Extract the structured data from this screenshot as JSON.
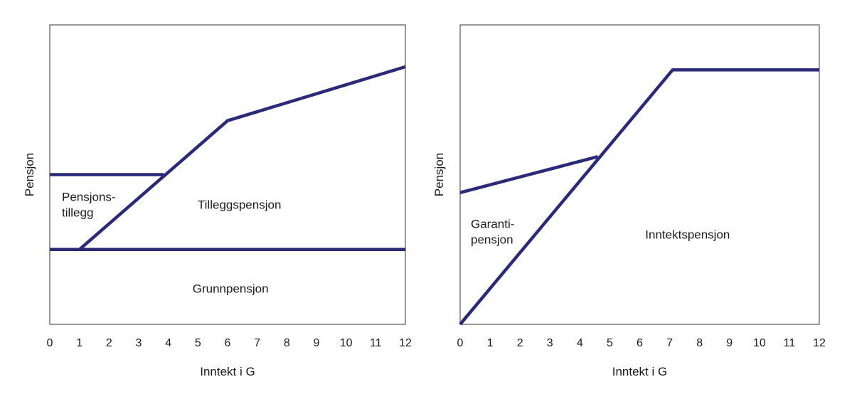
{
  "accent_color": "#2b2a78",
  "chart_data": [
    {
      "type": "line",
      "xlabel": "Inntekt i G",
      "ylabel": "Pensjon",
      "xlim": [
        0,
        12
      ],
      "ylim": [
        0,
        100
      ],
      "x_ticks": [
        "0",
        "1",
        "2",
        "3",
        "4",
        "5",
        "6",
        "7",
        "8",
        "9",
        "10",
        "11",
        "12"
      ],
      "grid": false,
      "series": [
        {
          "id": "grunnpensjon-line",
          "points": [
            [
              0,
              25
            ],
            [
              12,
              25
            ]
          ]
        },
        {
          "id": "pensjonstillegg-line",
          "points": [
            [
              0,
              50
            ],
            [
              3.85,
              50
            ]
          ]
        },
        {
          "id": "tilleggspensjon-line",
          "points": [
            [
              1,
              25
            ],
            [
              6,
              68
            ],
            [
              12,
              86
            ]
          ]
        }
      ],
      "annotations": [
        {
          "id": "pensjonstillegg",
          "lines": [
            "Pensjons-",
            "tillegg"
          ],
          "x": 1.3,
          "y": 40
        },
        {
          "id": "tilleggspensjon",
          "lines": [
            "Tilleggspensjon"
          ],
          "x": 6.4,
          "y": 40
        },
        {
          "id": "grunnpensjon",
          "lines": [
            "Grunnpensjon"
          ],
          "x": 6.1,
          "y": 12
        }
      ]
    },
    {
      "type": "line",
      "xlabel": "Inntekt i G",
      "ylabel": "Pensjon",
      "xlim": [
        0,
        12
      ],
      "ylim": [
        0,
        100
      ],
      "x_ticks": [
        "0",
        "1",
        "2",
        "3",
        "4",
        "5",
        "6",
        "7",
        "8",
        "9",
        "10",
        "11",
        "12"
      ],
      "grid": false,
      "series": [
        {
          "id": "garantipensjon-line",
          "points": [
            [
              0,
              44
            ],
            [
              4.6,
              56
            ]
          ]
        },
        {
          "id": "inntektspensjon-line",
          "points": [
            [
              0,
              0
            ],
            [
              7.1,
              85
            ],
            [
              12,
              85
            ]
          ]
        }
      ],
      "annotations": [
        {
          "id": "garantipensjon",
          "lines": [
            "Garanti-",
            "pensjon"
          ],
          "x": 0.85,
          "y": 31
        },
        {
          "id": "inntektspensjon",
          "lines": [
            "Inntektspensjon"
          ],
          "x": 7.6,
          "y": 30
        }
      ]
    }
  ]
}
